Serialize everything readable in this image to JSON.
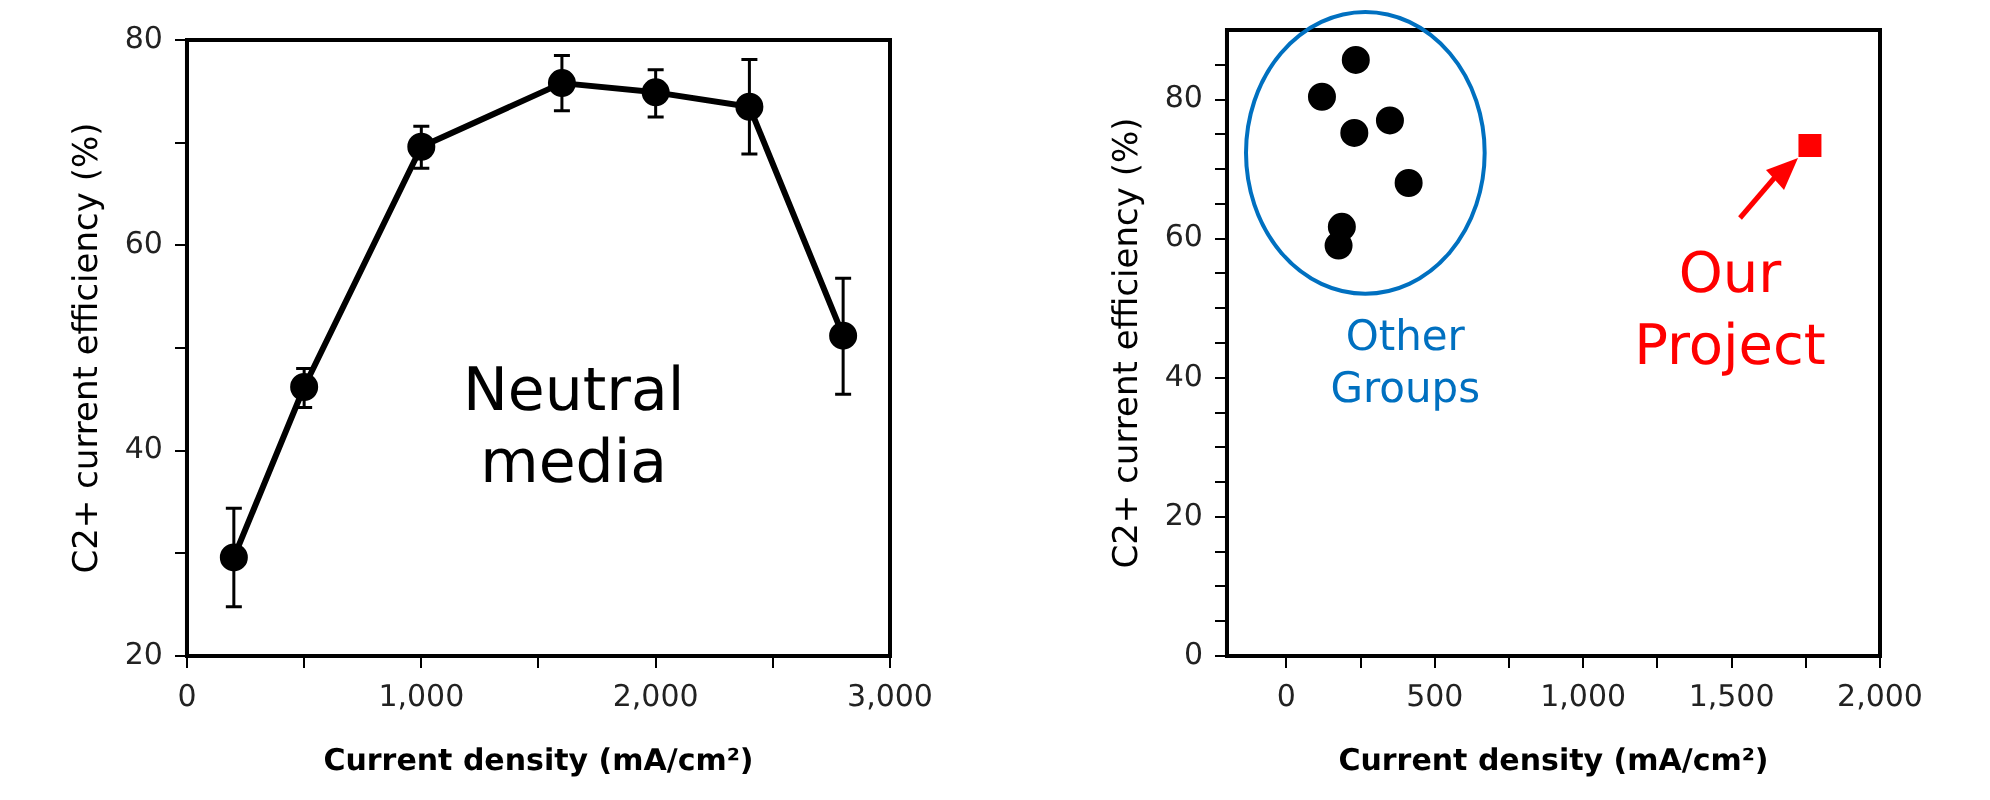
{
  "chart_data": [
    {
      "type": "line",
      "xlabel": "Current density (mA/cm²)",
      "ylabel": "C2+ current efficiency (%)",
      "marker": "circle",
      "line_style": "solid",
      "x": [
        200,
        500,
        1000,
        1600,
        2000,
        2400,
        2800
      ],
      "series": [
        {
          "color": "#000000",
          "values": [
            29.6,
            46.2,
            69.6,
            75.8,
            74.9,
            73.5,
            51.2
          ],
          "errors": [
            [
              24.8,
              34.4
            ],
            [
              44.2,
              48.0
            ],
            [
              67.5,
              71.6
            ],
            [
              73.1,
              78.5
            ],
            [
              72.5,
              77.1
            ],
            [
              68.9,
              78.1
            ],
            [
              45.5,
              56.8
            ]
          ]
        }
      ],
      "xlim": [
        0,
        3000
      ],
      "xticks": [
        {
          "value": 0,
          "label": "0"
        },
        {
          "value": 500,
          "label": null
        },
        {
          "value": 1000,
          "label": "1,000"
        },
        {
          "value": 1500,
          "label": null
        },
        {
          "value": 2000,
          "label": "2,000"
        },
        {
          "value": 2500,
          "label": null
        },
        {
          "value": 3000,
          "label": "3,000"
        }
      ],
      "ylim": [
        20,
        80
      ],
      "yticks": [
        20,
        {
          "value": 30,
          "label": null
        },
        40,
        {
          "value": 50,
          "label": null
        },
        60,
        {
          "value": 70,
          "label": null
        },
        80
      ],
      "annotations": [
        "Neutral media"
      ]
    },
    {
      "type": "scatter",
      "xlabel": "Current density (mA/cm²)",
      "ylabel": "C2+ current efficiency (%)",
      "series": [
        {
          "name": "Other Groups",
          "color": "#000000",
          "marker": "circle",
          "x": [
            120,
            234,
            229,
            349,
            412,
            187,
            176
          ],
          "values": [
            80.4,
            85.7,
            75.2,
            77.0,
            68.0,
            61.7,
            59.0
          ]
        },
        {
          "name": "Our Project",
          "color": "#ff0000",
          "marker": "square",
          "x": [
            1764
          ],
          "values": [
            73.4
          ]
        }
      ],
      "xlim": [
        -200,
        2000
      ],
      "xticks": [
        {
          "value": 0,
          "label": "0"
        },
        {
          "value": 250,
          "label": null
        },
        500,
        {
          "value": 750,
          "label": null
        },
        {
          "value": 1000,
          "label": "1,000"
        },
        {
          "value": 1250,
          "label": null
        },
        {
          "value": 1500,
          "label": "1,500"
        },
        {
          "value": 1750,
          "label": null
        },
        {
          "value": 2000,
          "label": "2,000"
        }
      ],
      "ylim": [
        0,
        90
      ],
      "yticks": [
        {
          "value": 0,
          "label": "0"
        },
        {
          "value": 5,
          "label": null
        },
        {
          "value": 10,
          "label": null
        },
        {
          "value": 15,
          "label": null
        },
        20,
        {
          "value": 25,
          "label": null
        },
        {
          "value": 30,
          "label": null
        },
        {
          "value": 35,
          "label": null
        },
        40,
        {
          "value": 45,
          "label": null
        },
        {
          "value": 50,
          "label": null
        },
        {
          "value": 55,
          "label": null
        },
        60,
        {
          "value": 65,
          "label": null
        },
        {
          "value": 70,
          "label": null
        },
        {
          "value": 75,
          "label": null
        },
        80,
        {
          "value": 85,
          "label": null
        }
      ]
    }
  ]
}
